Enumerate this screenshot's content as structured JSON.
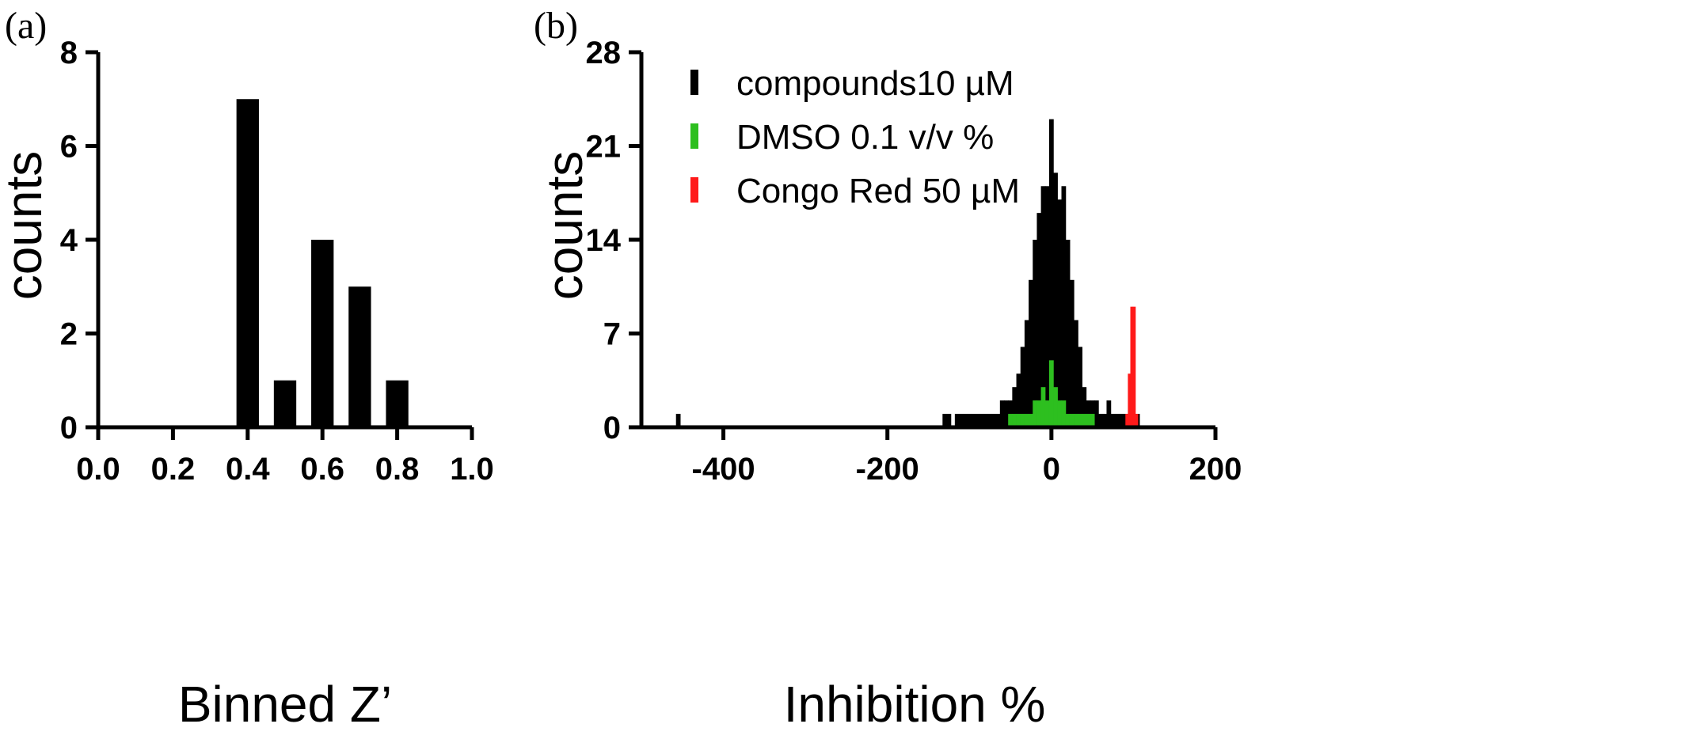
{
  "chart_data": [
    {
      "type": "bar",
      "panel_label": "(a)",
      "xlabel": "Binned Z’",
      "ylabel": "counts",
      "xlim": [
        0.0,
        1.0
      ],
      "ylim": [
        0,
        8
      ],
      "xticks": [
        "0.0",
        "0.2",
        "0.4",
        "0.6",
        "0.8",
        "1.0"
      ],
      "yticks": [
        "0",
        "2",
        "4",
        "6",
        "8"
      ],
      "x": [
        0.4,
        0.5,
        0.6,
        0.7,
        0.8
      ],
      "values": [
        7,
        1,
        4,
        3,
        1
      ],
      "color": "#000000"
    },
    {
      "type": "bar",
      "panel_label": "(b)",
      "xlabel": "Inhibition %",
      "ylabel": "counts",
      "xlim": [
        -500,
        200
      ],
      "ylim": [
        0,
        28
      ],
      "xticks": [
        "-400",
        "-200",
        "0",
        "200"
      ],
      "yticks": [
        "0",
        "7",
        "14",
        "21",
        "28"
      ],
      "legend_position": "top-left",
      "series": [
        {
          "name": "compounds10 µM",
          "color": "#000000",
          "x": [
            -455,
            -130,
            -125,
            -115,
            -110,
            -105,
            -100,
            -95,
            -90,
            -85,
            -80,
            -75,
            -70,
            -65,
            -60,
            -55,
            -50,
            -45,
            -40,
            -35,
            -30,
            -25,
            -20,
            -15,
            -10,
            -5,
            0,
            5,
            10,
            15,
            20,
            25,
            30,
            35,
            40,
            45,
            50,
            55,
            60,
            65,
            70,
            75,
            80,
            85,
            90,
            95,
            100,
            105
          ],
          "values": [
            1,
            1,
            1,
            1,
            1,
            1,
            1,
            1,
            1,
            1,
            1,
            1,
            1,
            1,
            2,
            2,
            2,
            3,
            4,
            6,
            8,
            11,
            14,
            16,
            18,
            18,
            23,
            19,
            17,
            18,
            14,
            11,
            8,
            6,
            3,
            2,
            2,
            2,
            1,
            1,
            2,
            1,
            1,
            1,
            1,
            1,
            1,
            1
          ]
        },
        {
          "name": "DMSO 0.1 v/v %",
          "color": "#2dbf1f",
          "x": [
            -50,
            -45,
            -40,
            -35,
            -30,
            -25,
            -20,
            -15,
            -10,
            -5,
            0,
            5,
            10,
            15,
            20,
            25,
            30,
            35,
            40,
            45,
            50
          ],
          "values": [
            1,
            1,
            1,
            1,
            1,
            1,
            2,
            2,
            3,
            2,
            5,
            3,
            2,
            2,
            1,
            1,
            1,
            1,
            1,
            1,
            1
          ]
        },
        {
          "name": "Congo Red 50 µM",
          "color": "#ff1a1a",
          "x": [
            92,
            95,
            98,
            101,
            104
          ],
          "values": [
            1,
            4,
            9,
            9,
            1
          ]
        }
      ]
    }
  ]
}
